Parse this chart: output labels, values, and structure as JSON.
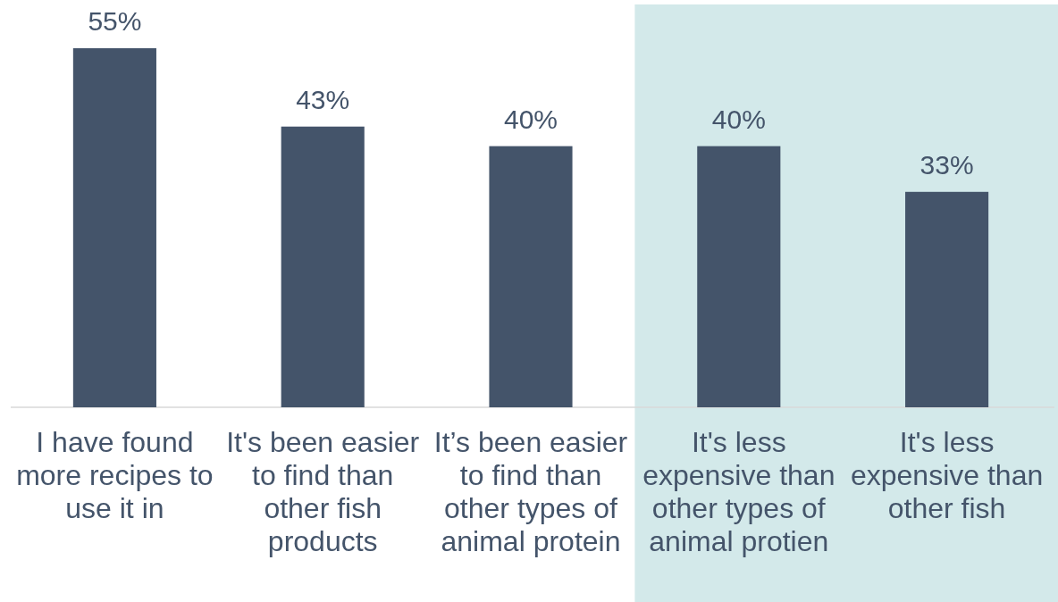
{
  "chart_data": {
    "type": "bar",
    "categories": [
      "I have found more recipes to use it in",
      "It's been easier to find than other fish products",
      "It’s been easier to find than other types of animal protein",
      "It's less expensive than other types of animal protien",
      "It's less expensive than other fish"
    ],
    "values": [
      55,
      43,
      40,
      40,
      33
    ],
    "color": "#44546a",
    "value_labels": [
      "55%",
      "43%",
      "40%",
      "40%",
      "33%"
    ],
    "tick_labels": "x",
    "bands": [
      {
        "axis": "x",
        "from": "It's less expensive than other types of animal protien",
        "to": "It's less expensive than other fish",
        "color": "#d3e9ea"
      }
    ]
  }
}
